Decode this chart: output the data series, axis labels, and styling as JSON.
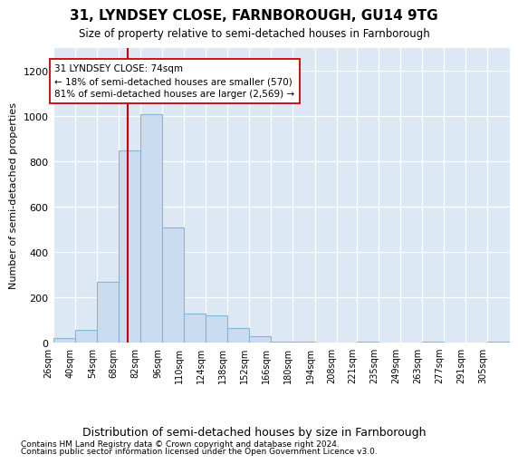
{
  "title": "31, LYNDSEY CLOSE, FARNBOROUGH, GU14 9TG",
  "subtitle": "Size of property relative to semi-detached houses in Farnborough",
  "xlabel": "Distribution of semi-detached houses by size in Farnborough",
  "ylabel": "Number of semi-detached properties",
  "bar_color": "#c9dcf0",
  "bar_edge_color": "#8ab4d8",
  "bg_color": "#dce8f4",
  "annotation_text": "31 LYNDSEY CLOSE: 74sqm\n← 18% of semi-detached houses are smaller (570)\n81% of semi-detached houses are larger (2,569) →",
  "vline_color": "#cc0000",
  "vline_x": 74,
  "bins": [
    26,
    40,
    54,
    68,
    82,
    96,
    110,
    124,
    138,
    152,
    166,
    180,
    194,
    208,
    221,
    235,
    249,
    263,
    277,
    291,
    305
  ],
  "bin_labels": [
    "26sqm",
    "40sqm",
    "54sqm",
    "68sqm",
    "82sqm",
    "96sqm",
    "110sqm",
    "124sqm",
    "138sqm",
    "152sqm",
    "166sqm",
    "180sqm",
    "194sqm",
    "208sqm",
    "221sqm",
    "235sqm",
    "249sqm",
    "263sqm",
    "277sqm",
    "291sqm",
    "305sqm"
  ],
  "counts": [
    20,
    55,
    270,
    850,
    1010,
    510,
    130,
    120,
    65,
    30,
    5,
    5,
    0,
    0,
    5,
    0,
    0,
    5,
    0,
    0,
    5
  ],
  "ylim": [
    0,
    1300
  ],
  "yticks": [
    0,
    200,
    400,
    600,
    800,
    1000,
    1200
  ],
  "footer1": "Contains HM Land Registry data © Crown copyright and database right 2024.",
  "footer2": "Contains public sector information licensed under the Open Government Licence v3.0."
}
